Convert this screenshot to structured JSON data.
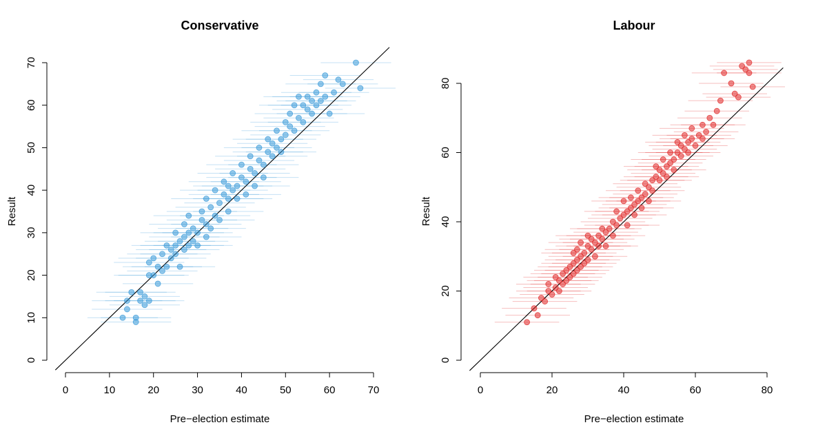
{
  "chart_data": [
    {
      "type": "scatter",
      "title": "Conservative",
      "xlabel": "Pre−election estimate",
      "ylabel": "Result",
      "xlim": [
        0,
        70
      ],
      "ylim": [
        0,
        70
      ],
      "xticks": [
        "0",
        "10",
        "20",
        "30",
        "40",
        "50",
        "60",
        "70"
      ],
      "yticks": [
        "0",
        "10",
        "20",
        "30",
        "40",
        "50",
        "60",
        "70"
      ],
      "reference_line": "y = x",
      "color": "#3a9ad9",
      "error_bars": "horizontal, approx. ±8 around each estimate",
      "points": [
        [
          13,
          10
        ],
        [
          14,
          12
        ],
        [
          14,
          14
        ],
        [
          15,
          16
        ],
        [
          16,
          9
        ],
        [
          16,
          10
        ],
        [
          17,
          14
        ],
        [
          17,
          16
        ],
        [
          18,
          13
        ],
        [
          18,
          15
        ],
        [
          19,
          14
        ],
        [
          19,
          20
        ],
        [
          19,
          23
        ],
        [
          20,
          20
        ],
        [
          20,
          24
        ],
        [
          21,
          22
        ],
        [
          21,
          18
        ],
        [
          22,
          21
        ],
        [
          22,
          25
        ],
        [
          23,
          27
        ],
        [
          23,
          22
        ],
        [
          24,
          26
        ],
        [
          24,
          24
        ],
        [
          25,
          25
        ],
        [
          25,
          27
        ],
        [
          25,
          30
        ],
        [
          26,
          28
        ],
        [
          26,
          22
        ],
        [
          27,
          29
        ],
        [
          27,
          26
        ],
        [
          27,
          32
        ],
        [
          28,
          30
        ],
        [
          28,
          27
        ],
        [
          28,
          34
        ],
        [
          29,
          31
        ],
        [
          29,
          28
        ],
        [
          30,
          30
        ],
        [
          30,
          27
        ],
        [
          31,
          33
        ],
        [
          31,
          35
        ],
        [
          32,
          32
        ],
        [
          32,
          29
        ],
        [
          32,
          38
        ],
        [
          33,
          36
        ],
        [
          33,
          31
        ],
        [
          34,
          34
        ],
        [
          34,
          40
        ],
        [
          35,
          37
        ],
        [
          35,
          33
        ],
        [
          36,
          39
        ],
        [
          36,
          42
        ],
        [
          37,
          38
        ],
        [
          37,
          41
        ],
        [
          37,
          35
        ],
        [
          38,
          40
        ],
        [
          38,
          44
        ],
        [
          39,
          41
        ],
        [
          39,
          38
        ],
        [
          40,
          43
        ],
        [
          40,
          46
        ],
        [
          41,
          42
        ],
        [
          41,
          39
        ],
        [
          42,
          45
        ],
        [
          42,
          48
        ],
        [
          43,
          44
        ],
        [
          43,
          41
        ],
        [
          44,
          47
        ],
        [
          44,
          50
        ],
        [
          45,
          46
        ],
        [
          45,
          43
        ],
        [
          46,
          49
        ],
        [
          46,
          52
        ],
        [
          47,
          48
        ],
        [
          47,
          51
        ],
        [
          48,
          50
        ],
        [
          48,
          54
        ],
        [
          49,
          52
        ],
        [
          49,
          49
        ],
        [
          50,
          53
        ],
        [
          50,
          56
        ],
        [
          51,
          55
        ],
        [
          51,
          58
        ],
        [
          52,
          54
        ],
        [
          52,
          60
        ],
        [
          53,
          57
        ],
        [
          53,
          62
        ],
        [
          54,
          56
        ],
        [
          54,
          60
        ],
        [
          55,
          59
        ],
        [
          55,
          62
        ],
        [
          56,
          58
        ],
        [
          56,
          61
        ],
        [
          57,
          60
        ],
        [
          57,
          63
        ],
        [
          58,
          61
        ],
        [
          58,
          65
        ],
        [
          59,
          62
        ],
        [
          59,
          67
        ],
        [
          60,
          58
        ],
        [
          61,
          63
        ],
        [
          62,
          66
        ],
        [
          63,
          65
        ],
        [
          66,
          70
        ],
        [
          67,
          64
        ]
      ]
    },
    {
      "type": "scatter",
      "title": "Labour",
      "xlabel": "Pre−election estimate",
      "ylabel": "Result",
      "xlim": [
        0,
        80
      ],
      "ylim": [
        0,
        80
      ],
      "xticks": [
        "0",
        "20",
        "40",
        "60",
        "80"
      ],
      "yticks": [
        "0",
        "20",
        "40",
        "60",
        "80"
      ],
      "reference_line": "y = x",
      "color": "#e02828",
      "error_bars": "horizontal, approx. ±9 around each estimate",
      "points": [
        [
          13,
          11
        ],
        [
          15,
          15
        ],
        [
          16,
          13
        ],
        [
          17,
          18
        ],
        [
          18,
          17
        ],
        [
          19,
          20
        ],
        [
          19,
          22
        ],
        [
          20,
          19
        ],
        [
          21,
          21
        ],
        [
          21,
          24
        ],
        [
          22,
          23
        ],
        [
          22,
          20
        ],
        [
          23,
          25
        ],
        [
          23,
          22
        ],
        [
          24,
          26
        ],
        [
          24,
          23
        ],
        [
          25,
          27
        ],
        [
          25,
          24
        ],
        [
          26,
          28
        ],
        [
          26,
          31
        ],
        [
          26,
          25
        ],
        [
          27,
          29
        ],
        [
          27,
          26
        ],
        [
          27,
          32
        ],
        [
          28,
          30
        ],
        [
          28,
          27
        ],
        [
          28,
          34
        ],
        [
          29,
          31
        ],
        [
          29,
          28
        ],
        [
          30,
          33
        ],
        [
          30,
          29
        ],
        [
          30,
          36
        ],
        [
          31,
          32
        ],
        [
          31,
          35
        ],
        [
          32,
          34
        ],
        [
          32,
          30
        ],
        [
          33,
          36
        ],
        [
          33,
          33
        ],
        [
          34,
          35
        ],
        [
          34,
          38
        ],
        [
          35,
          37
        ],
        [
          35,
          33
        ],
        [
          36,
          38
        ],
        [
          37,
          40
        ],
        [
          37,
          36
        ],
        [
          38,
          39
        ],
        [
          38,
          43
        ],
        [
          39,
          41
        ],
        [
          40,
          42
        ],
        [
          40,
          46
        ],
        [
          41,
          43
        ],
        [
          41,
          39
        ],
        [
          42,
          44
        ],
        [
          42,
          47
        ],
        [
          43,
          45
        ],
        [
          43,
          42
        ],
        [
          44,
          46
        ],
        [
          44,
          49
        ],
        [
          45,
          47
        ],
        [
          45,
          44
        ],
        [
          46,
          48
        ],
        [
          46,
          51
        ],
        [
          47,
          50
        ],
        [
          47,
          46
        ],
        [
          48,
          52
        ],
        [
          48,
          49
        ],
        [
          49,
          53
        ],
        [
          49,
          56
        ],
        [
          50,
          52
        ],
        [
          50,
          55
        ],
        [
          51,
          54
        ],
        [
          51,
          58
        ],
        [
          52,
          56
        ],
        [
          52,
          53
        ],
        [
          53,
          57
        ],
        [
          53,
          60
        ],
        [
          54,
          58
        ],
        [
          54,
          55
        ],
        [
          55,
          60
        ],
        [
          55,
          63
        ],
        [
          56,
          59
        ],
        [
          56,
          62
        ],
        [
          57,
          61
        ],
        [
          57,
          65
        ],
        [
          58,
          63
        ],
        [
          58,
          60
        ],
        [
          59,
          64
        ],
        [
          59,
          67
        ],
        [
          60,
          62
        ],
        [
          61,
          65
        ],
        [
          62,
          64
        ],
        [
          62,
          68
        ],
        [
          63,
          66
        ],
        [
          64,
          70
        ],
        [
          65,
          68
        ],
        [
          66,
          72
        ],
        [
          67,
          75
        ],
        [
          68,
          83
        ],
        [
          70,
          80
        ],
        [
          71,
          77
        ],
        [
          72,
          76
        ],
        [
          73,
          85
        ],
        [
          74,
          84
        ],
        [
          75,
          83
        ],
        [
          75,
          86
        ],
        [
          76,
          79
        ]
      ]
    }
  ]
}
